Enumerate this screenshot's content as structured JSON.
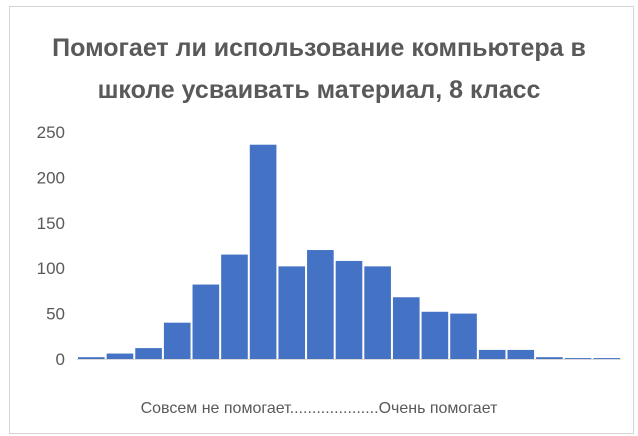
{
  "chart_data": {
    "type": "bar",
    "title_lines": [
      "Помогает ли использование компьютера в",
      "школе усваивать материал, 8 класс"
    ],
    "xlabel": "Совсем не помогает....................Очень помогает",
    "ylabel": "",
    "ylim": [
      0,
      250
    ],
    "yticks": [
      0,
      50,
      100,
      150,
      200,
      250
    ],
    "grid": false,
    "legend": "none",
    "color": "#4472C4",
    "values": [
      2,
      6,
      12,
      40,
      82,
      115,
      236,
      102,
      120,
      108,
      102,
      68,
      52,
      50,
      10,
      10,
      2,
      1,
      1
    ]
  }
}
